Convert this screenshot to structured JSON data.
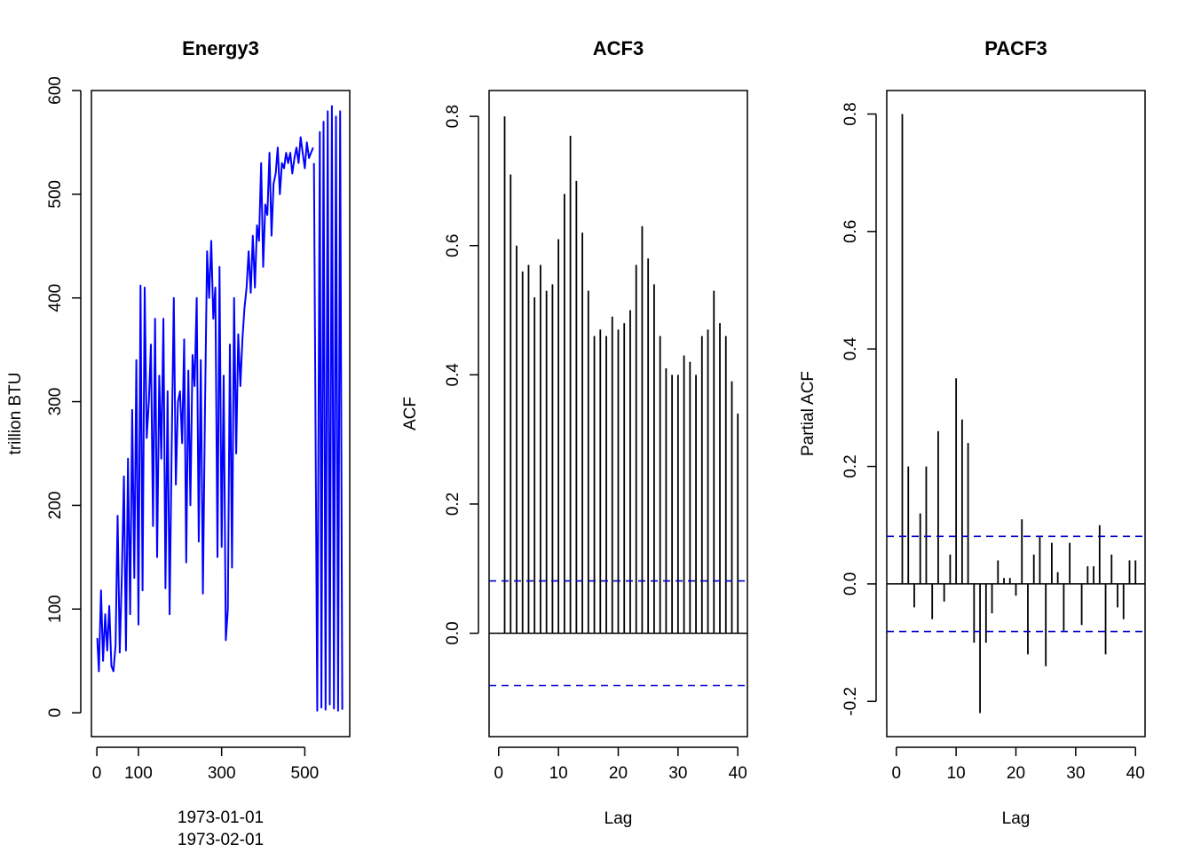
{
  "chart_data": [
    {
      "id": "energy",
      "type": "line",
      "title": "Energy3",
      "ylabel": "trillion BTU",
      "xlabel_lines": [
        "1973-01-01",
        "1973-02-01"
      ],
      "xlim": [
        -13,
        608
      ],
      "ylim": [
        -23,
        600
      ],
      "xticks": [
        0,
        100,
        300,
        500
      ],
      "yticks": [
        0,
        100,
        200,
        300,
        400,
        500,
        600
      ],
      "color": "#0000ff",
      "series": [
        {
          "x": [
            1,
            5,
            10,
            15,
            20,
            25,
            30,
            35,
            40,
            45,
            50,
            55,
            60,
            65,
            70,
            75,
            80,
            85,
            90,
            95,
            100,
            105,
            110,
            115,
            120,
            125,
            130,
            135,
            140,
            145,
            150,
            155,
            160,
            165,
            170,
            175,
            180,
            185,
            190,
            195,
            200,
            205,
            210,
            215,
            220,
            225,
            230,
            235,
            240,
            245,
            250,
            255,
            260,
            265,
            270,
            275,
            280,
            285,
            290,
            295,
            300,
            305,
            310,
            315,
            320,
            325,
            330,
            335,
            340,
            345,
            350,
            355,
            360,
            365,
            370,
            375,
            380,
            385,
            390,
            395,
            400,
            405,
            410,
            415,
            420,
            425,
            430,
            435,
            440,
            445,
            450,
            455,
            460,
            465,
            470,
            475,
            480,
            485,
            490,
            495,
            500,
            505,
            510,
            515,
            520
          ],
          "y": [
            72,
            40,
            118,
            50,
            95,
            60,
            103,
            45,
            40,
            65,
            190,
            58,
            130,
            228,
            60,
            245,
            95,
            292,
            130,
            340,
            85,
            412,
            118,
            410,
            265,
            300,
            355,
            180,
            380,
            150,
            325,
            245,
            380,
            120,
            310,
            95,
            255,
            400,
            220,
            300,
            310,
            260,
            360,
            145,
            330,
            200,
            345,
            315,
            400,
            165,
            340,
            115,
            290,
            445,
            400,
            455,
            380,
            410,
            150,
            430,
            160,
            325,
            70,
            100,
            355,
            140,
            400,
            250,
            365,
            315,
            360,
            390,
            410,
            445,
            405,
            460,
            410,
            470,
            455,
            530,
            430,
            490,
            480,
            540,
            460,
            510,
            520,
            545,
            500,
            530,
            525,
            540,
            530,
            540,
            520,
            535,
            545,
            530,
            555,
            540,
            525,
            550,
            535,
            540,
            545
          ]
        },
        {
          "x": [
            522,
            530,
            536,
            540,
            545,
            550,
            555,
            560,
            565,
            570,
            575,
            580,
            585,
            590
          ],
          "y": [
            530,
            2,
            560,
            5,
            570,
            3,
            580,
            8,
            585,
            4,
            575,
            2,
            580,
            3
          ]
        }
      ]
    },
    {
      "id": "acf",
      "type": "bar",
      "title": "ACF3",
      "xlabel": "Lag",
      "ylabel": "ACF",
      "xlim": [
        -1.6,
        41.6
      ],
      "ylim": [
        -0.16,
        0.84
      ],
      "xticks": [
        0,
        10,
        20,
        30,
        40
      ],
      "yticks": [
        0.0,
        0.2,
        0.4,
        0.6,
        0.8
      ],
      "conf_limit": 0.081,
      "conf_color": "#0000cd",
      "lags": [
        1,
        2,
        3,
        4,
        5,
        6,
        7,
        8,
        9,
        10,
        11,
        12,
        13,
        14,
        15,
        16,
        17,
        18,
        19,
        20,
        21,
        22,
        23,
        24,
        25,
        26,
        27,
        28,
        29,
        30,
        31,
        32,
        33,
        34,
        35,
        36,
        37,
        38,
        39,
        40
      ],
      "values": [
        0.8,
        0.71,
        0.6,
        0.56,
        0.57,
        0.52,
        0.57,
        0.53,
        0.54,
        0.61,
        0.68,
        0.77,
        0.7,
        0.62,
        0.53,
        0.46,
        0.47,
        0.46,
        0.49,
        0.47,
        0.48,
        0.5,
        0.57,
        0.63,
        0.58,
        0.54,
        0.46,
        0.41,
        0.4,
        0.4,
        0.43,
        0.42,
        0.4,
        0.46,
        0.47,
        0.53,
        0.48,
        0.46,
        0.39,
        0.34
      ]
    },
    {
      "id": "pacf",
      "type": "bar",
      "title": "PACF3",
      "xlabel": "Lag",
      "ylabel": "Partial ACF",
      "xlim": [
        -1.6,
        41.6
      ],
      "ylim": [
        -0.26,
        0.84
      ],
      "xticks": [
        0,
        10,
        20,
        30,
        40
      ],
      "yticks": [
        -0.2,
        0.0,
        0.2,
        0.4,
        0.6,
        0.8
      ],
      "conf_limit": 0.081,
      "conf_color": "#0000cd",
      "lags": [
        1,
        2,
        3,
        4,
        5,
        6,
        7,
        8,
        9,
        10,
        11,
        12,
        13,
        14,
        15,
        16,
        17,
        18,
        19,
        20,
        21,
        22,
        23,
        24,
        25,
        26,
        27,
        28,
        29,
        30,
        31,
        32,
        33,
        34,
        35,
        36,
        37,
        38,
        39,
        40
      ],
      "values": [
        0.8,
        0.2,
        -0.04,
        0.12,
        0.2,
        -0.06,
        0.26,
        -0.03,
        0.05,
        0.35,
        0.28,
        0.24,
        -0.1,
        -0.22,
        -0.1,
        -0.05,
        0.04,
        0.01,
        0.01,
        -0.02,
        0.11,
        -0.12,
        0.05,
        0.08,
        -0.14,
        0.07,
        0.02,
        -0.08,
        0.07,
        0.0,
        -0.07,
        0.03,
        0.03,
        0.1,
        -0.12,
        0.05,
        -0.04,
        -0.06,
        0.04,
        0.04
      ]
    }
  ]
}
